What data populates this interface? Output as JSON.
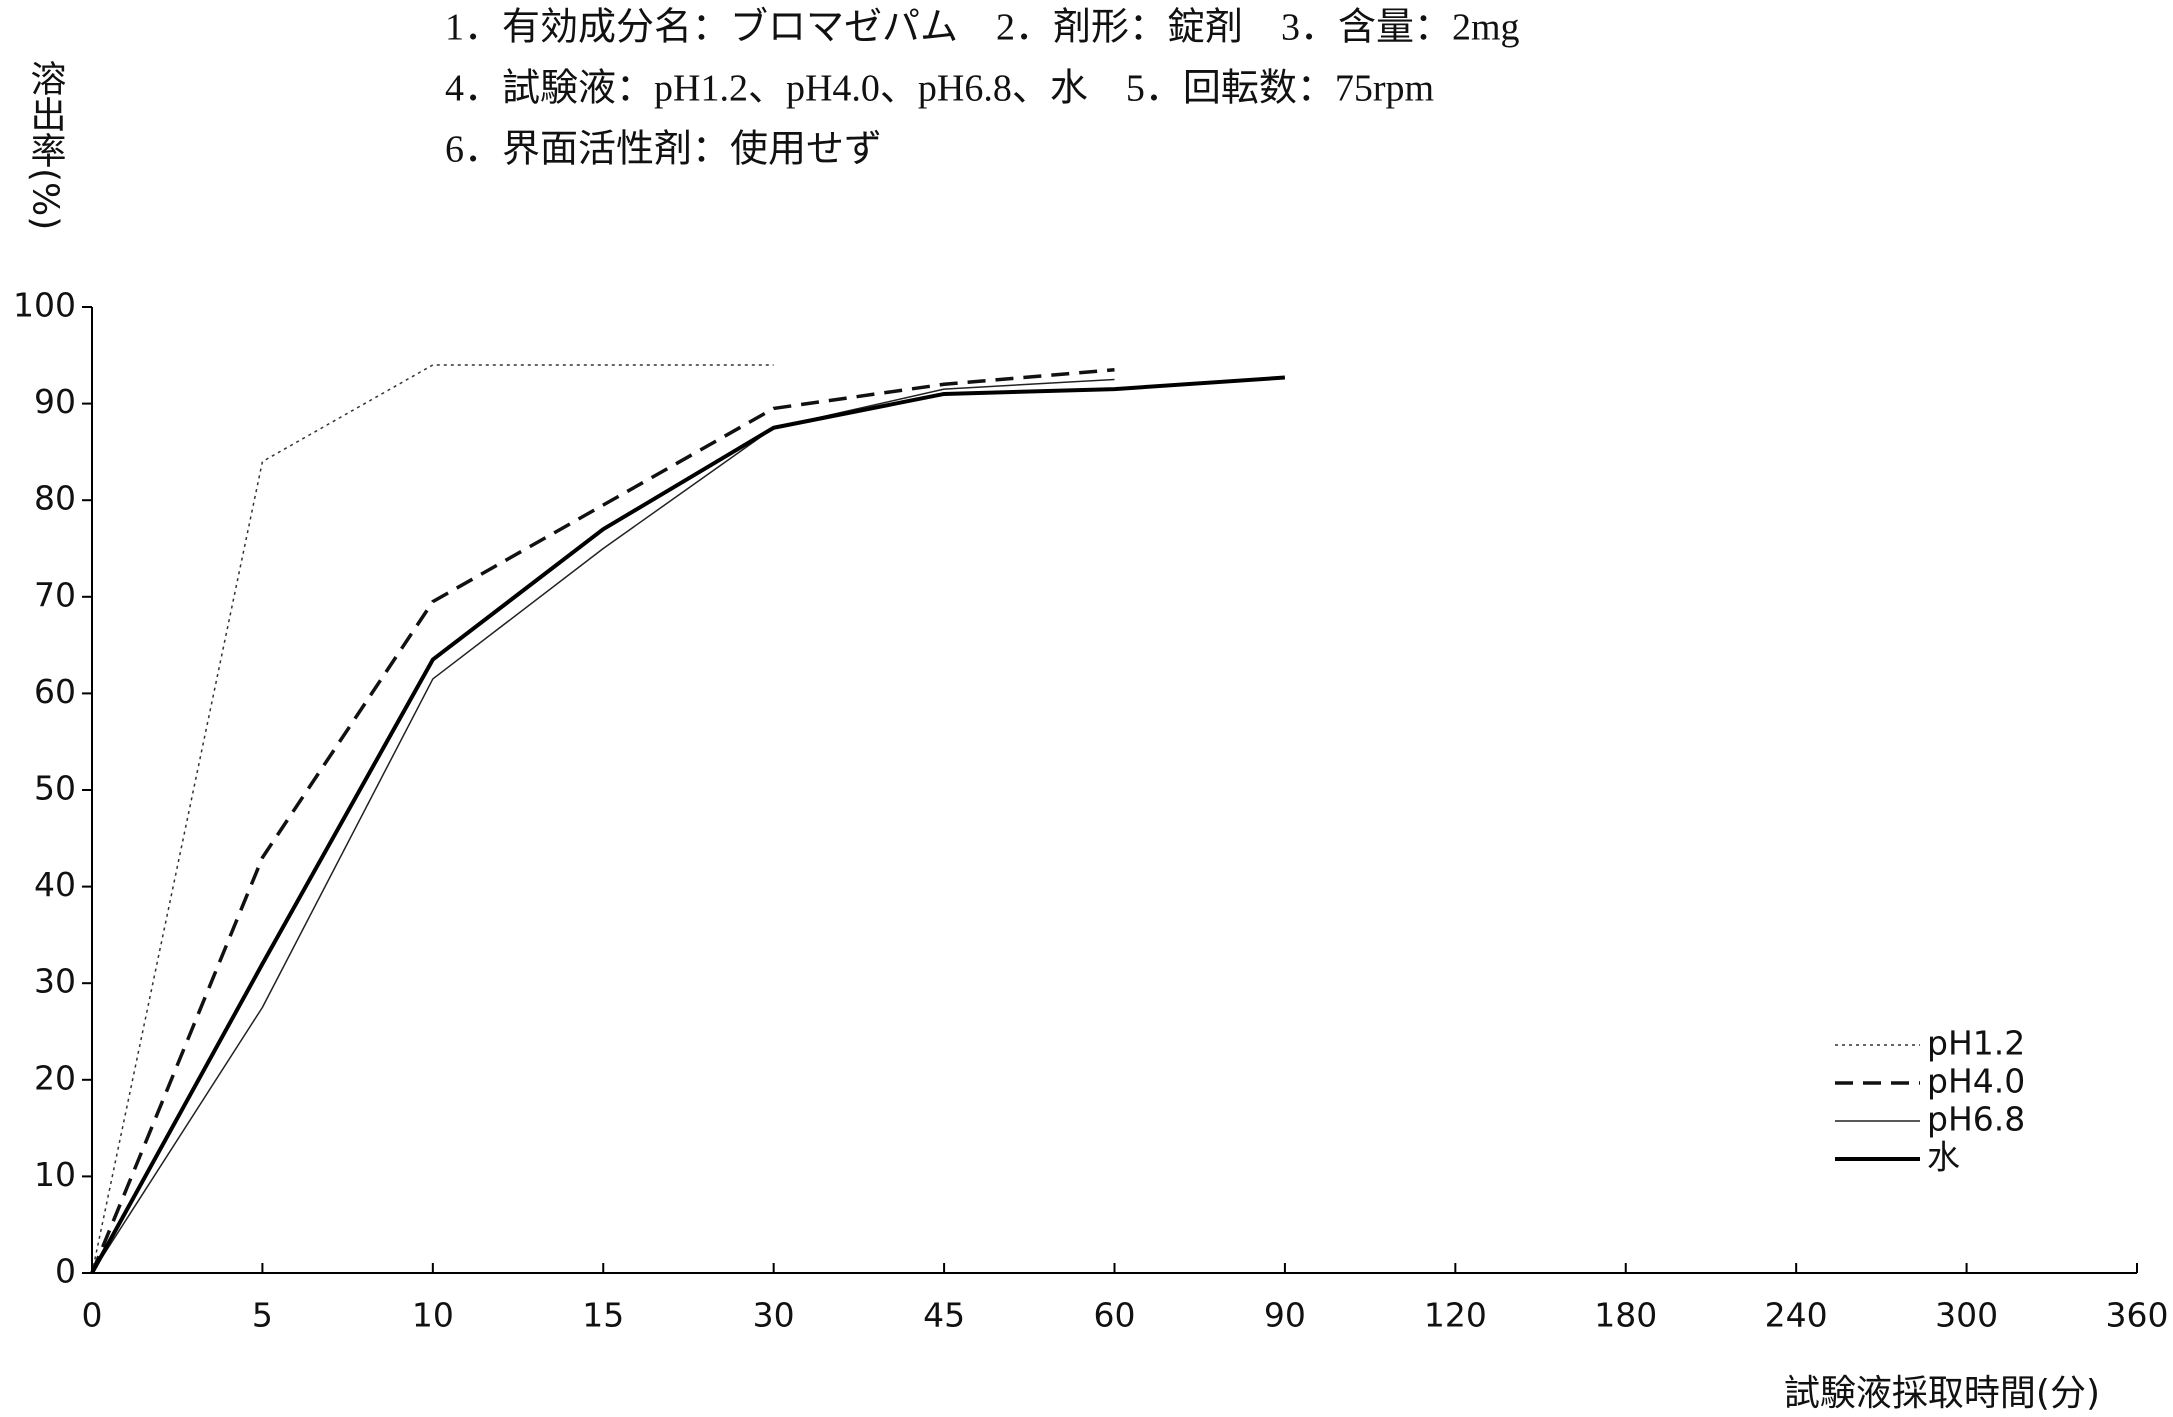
{
  "chart_data": {
    "type": "line",
    "title_lines": [
      "1．有効成分名：ブロマゼパム　2．剤形：錠剤　3．含量：2mg",
      "4．試験液：pH1.2、pH4.0、pH6.8、水　5．回転数：75rpm",
      "6．界面活性剤：使用せず"
    ],
    "y_label": "溶出率(%)",
    "x_label": "試験液採取時間(分)",
    "categories": [
      0,
      5,
      10,
      15,
      30,
      45,
      60,
      90,
      120,
      180,
      240,
      300,
      360
    ],
    "ylim": [
      0,
      100
    ],
    "yticks": [
      0,
      10,
      20,
      30,
      40,
      50,
      60,
      70,
      80,
      90,
      100
    ],
    "legend": "lower right",
    "series": [
      {
        "name": "pH1.2",
        "color": "#333333",
        "line_style": "dotted",
        "width": 1.5,
        "values": [
          0,
          84,
          94,
          94,
          94,
          null,
          null,
          null,
          null,
          null,
          null,
          null,
          null
        ]
      },
      {
        "name": "pH4.0",
        "color": "#111111",
        "line_style": "dashed",
        "width": 3.5,
        "values": [
          0,
          43,
          69.5,
          79.5,
          89.5,
          92,
          93.5,
          null,
          null,
          null,
          null,
          null,
          null
        ]
      },
      {
        "name": "pH6.8",
        "color": "#222222",
        "line_style": "solid",
        "width": 1.5,
        "values": [
          0,
          27.5,
          61.5,
          75,
          87.5,
          91.5,
          92.5,
          null,
          null,
          null,
          null,
          null,
          null
        ]
      },
      {
        "name": "水",
        "color": "#000000",
        "line_style": "solid",
        "width": 4,
        "values": [
          0,
          32,
          63.5,
          77,
          87.5,
          91,
          91.5,
          92.7,
          null,
          null,
          null,
          null,
          null
        ]
      }
    ]
  }
}
